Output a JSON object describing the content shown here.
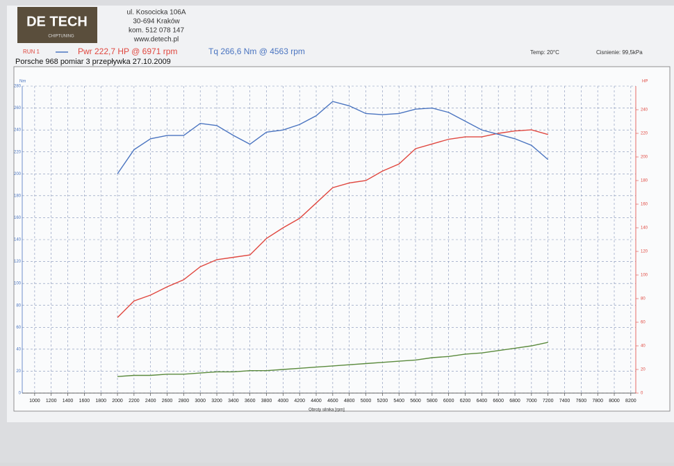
{
  "header": {
    "logo": "DE TECH",
    "logo_sub": "CHIPTUNING",
    "address": [
      "ul. Kosocicka 106A",
      "30-694 Kraków",
      "kom. 512 078 147",
      "www.detech.pl"
    ],
    "run": "RUN 1",
    "temp": "Temp: 20°C",
    "pressure": "Cisnienie: 99,5kPa",
    "description": "Porsche 968 pomiar 3 przepływka  27.10.2009"
  },
  "chart_data": {
    "type": "line",
    "x_label": "Obroty silnika [rpm]",
    "y_label": "Nm",
    "y2_label": "HP",
    "grid": true,
    "x": [
      2000,
      2200,
      2400,
      2600,
      2800,
      3000,
      3200,
      3400,
      3600,
      3800,
      4000,
      4200,
      4400,
      4600,
      4800,
      5000,
      5200,
      5400,
      5600,
      5800,
      6000,
      6200,
      6400,
      6600,
      6800,
      7000,
      7200
    ],
    "series": [
      {
        "name": "Pwr 222,7 HP @ 6971 rpm",
        "color": "#e0473f",
        "axis": "y2",
        "values": [
          64,
          78,
          83,
          90,
          96,
          107,
          113,
          115,
          117,
          131,
          140,
          148,
          161,
          174,
          178,
          180,
          188,
          194,
          207,
          211,
          215,
          217,
          217,
          220,
          222,
          223,
          219
        ]
      },
      {
        "name": "Tq 266,6 Nm @ 4563 rpm",
        "color": "#4a74c0",
        "values": [
          200,
          222,
          232,
          235,
          235,
          246,
          244,
          235,
          227,
          238,
          240,
          245,
          253,
          266,
          262,
          255,
          254,
          255,
          259,
          260,
          256,
          248,
          240,
          236,
          232,
          226,
          213
        ]
      },
      {
        "color": "#5a8a3c",
        "axis": "y2",
        "values": [
          14,
          15,
          15,
          16,
          16,
          17,
          18,
          18,
          19,
          19,
          20,
          21,
          22,
          23,
          24,
          25,
          26,
          27,
          28,
          30,
          31,
          33,
          34,
          36,
          38,
          40,
          43
        ]
      }
    ],
    "xlim": [
      850,
      8260
    ],
    "xticks": [
      1000,
      1200,
      1400,
      1600,
      1800,
      2000,
      2200,
      2400,
      2600,
      2800,
      3000,
      3200,
      3400,
      3600,
      3800,
      4000,
      4200,
      4400,
      4600,
      4800,
      5000,
      5200,
      5400,
      5600,
      5800,
      6000,
      6200,
      6400,
      6600,
      6800,
      7000,
      7200,
      7400,
      7600,
      7800,
      8000,
      8200
    ],
    "ylim": [
      0,
      280
    ],
    "yticks": [
      0,
      20,
      40,
      60,
      80,
      100,
      120,
      140,
      160,
      180,
      200,
      220,
      240,
      260,
      280
    ],
    "y2lim": [
      0,
      260
    ],
    "y2ticks": [
      0,
      20,
      40,
      60,
      80,
      100,
      120,
      140,
      160,
      180,
      200,
      220,
      240
    ]
  }
}
